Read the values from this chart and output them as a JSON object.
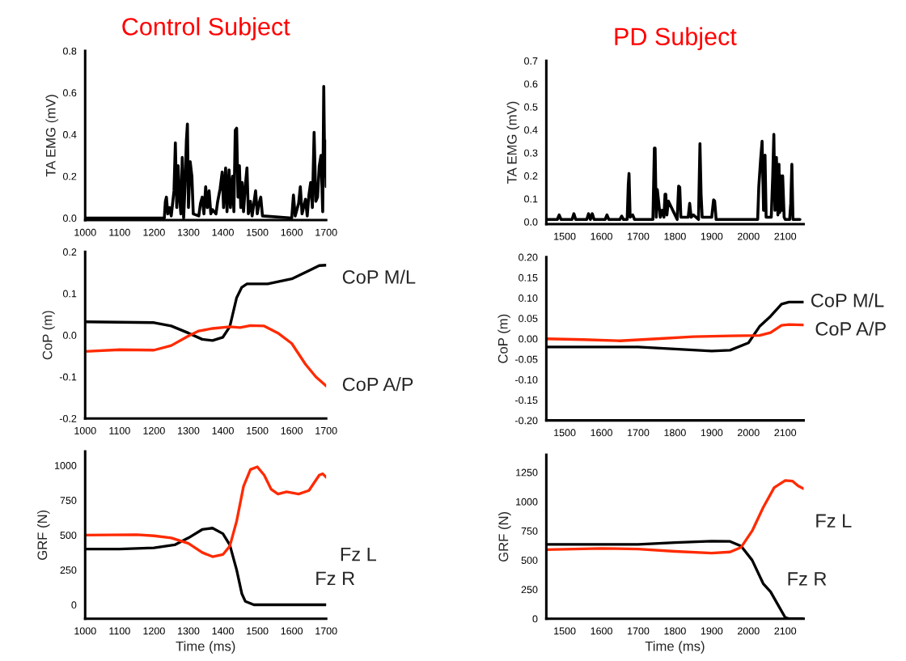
{
  "chart_data": [
    {
      "type": "line",
      "title": "Control Subject",
      "ylabel": "TA EMG (mV)",
      "xlim": [
        1000,
        1700
      ],
      "xticks": [
        1000,
        1100,
        1200,
        1300,
        1400,
        1500,
        1600,
        1700
      ],
      "ylim": [
        -0.01,
        0.8
      ],
      "yticks": [
        {
          "value": 0,
          "label": "0.0"
        },
        {
          "value": 0.2,
          "label": "0.2"
        },
        {
          "value": 0.4,
          "label": "0.4"
        },
        {
          "value": 0.6,
          "label": "0.6"
        },
        {
          "value": 0.8,
          "label": "0.8"
        }
      ],
      "grid": false,
      "legend": false,
      "series": [
        {
          "color": "#000000",
          "x": [
            1000,
            1230,
            1233,
            1236,
            1240,
            1245,
            1250,
            1258,
            1262,
            1266,
            1270,
            1274,
            1278,
            1282,
            1286,
            1290,
            1294,
            1297,
            1300,
            1305,
            1310,
            1314,
            1330,
            1335,
            1340,
            1345,
            1350,
            1355,
            1360,
            1365,
            1370,
            1380,
            1385,
            1392,
            1398,
            1402,
            1408,
            1412,
            1418,
            1422,
            1428,
            1432,
            1436,
            1440,
            1444,
            1448,
            1452,
            1456,
            1460,
            1465,
            1470,
            1474,
            1480,
            1485,
            1495,
            1500,
            1505,
            1510,
            1515,
            1600,
            1605,
            1610,
            1620,
            1625,
            1630,
            1640,
            1645,
            1650,
            1655,
            1660,
            1665,
            1670,
            1675,
            1680,
            1685,
            1690,
            1693,
            1696,
            1698,
            1700
          ],
          "values": [
            0,
            0,
            0.08,
            0.1,
            0.02,
            0.05,
            0.01,
            0.13,
            0.36,
            0.05,
            0.25,
            0.1,
            0.02,
            0.29,
            0,
            0.15,
            0.37,
            0.45,
            0.05,
            0.27,
            0.2,
            0.02,
            0.01,
            0.07,
            0.1,
            0.02,
            0.15,
            0.05,
            0.13,
            0.02,
            0.04,
            0.02,
            0.08,
            0.14,
            0.22,
            0.05,
            0.24,
            0.03,
            0.23,
            0.05,
            0.2,
            0.03,
            0.42,
            0.43,
            0.1,
            0.25,
            0.05,
            0.17,
            0.03,
            0.15,
            0.24,
            0.02,
            0.08,
            0.01,
            0.13,
            0.02,
            0.07,
            0.1,
            0.01,
            0,
            0.11,
            0.01,
            0.07,
            0.15,
            0.02,
            0.09,
            0.01,
            0.11,
            0.17,
            0.05,
            0.41,
            0.08,
            0.1,
            0.25,
            0.3,
            0.03,
            0.63,
            0.2,
            0.37,
            0.15
          ]
        }
      ]
    },
    {
      "type": "line",
      "title": "PD Subject",
      "ylabel": "TA EMG (mV)",
      "xlim": [
        1450,
        2150
      ],
      "xticks": [
        1500,
        1600,
        1700,
        1800,
        1900,
        2000,
        2100
      ],
      "ylim": [
        -0.01,
        0.7
      ],
      "yticks": [
        {
          "value": 0,
          "label": "0.0"
        },
        0.1,
        0.2,
        0.3,
        0.4,
        0.5,
        0.6,
        0.7
      ],
      "grid": false,
      "legend": false,
      "series": [
        {
          "color": "#000000",
          "x": [
            1450,
            1480,
            1485,
            1490,
            1520,
            1525,
            1530,
            1560,
            1565,
            1570,
            1575,
            1580,
            1610,
            1615,
            1620,
            1650,
            1655,
            1660,
            1670,
            1673,
            1675,
            1678,
            1685,
            1690,
            1695,
            1740,
            1744,
            1746,
            1749,
            1752,
            1760,
            1765,
            1770,
            1773,
            1775,
            1778,
            1782,
            1806,
            1810,
            1813,
            1816,
            1836,
            1840,
            1844,
            1850,
            1864,
            1868,
            1871,
            1874,
            1900,
            1905,
            1908,
            1912,
            1990,
            2025,
            2028,
            2033,
            2037,
            2041,
            2045,
            2048,
            2052,
            2062,
            2066,
            2069,
            2072,
            2076,
            2080,
            2083,
            2085,
            2088,
            2091,
            2093,
            2097,
            2100,
            2112,
            2115,
            2118,
            2121,
            2140
          ],
          "values": [
            0.01,
            0.01,
            0.03,
            0.01,
            0.01,
            0.035,
            0.01,
            0.01,
            0.035,
            0.01,
            0.035,
            0.01,
            0.01,
            0.03,
            0.01,
            0.01,
            0.025,
            0.01,
            0.01,
            0.16,
            0.21,
            0.02,
            0.03,
            0.01,
            0.01,
            0.01,
            0.32,
            0.32,
            0.02,
            0.14,
            0.02,
            0.05,
            0.02,
            0.12,
            0.12,
            0.03,
            0.09,
            0.01,
            0.155,
            0.15,
            0.02,
            0.02,
            0.08,
            0.02,
            0.03,
            0.01,
            0.34,
            0.12,
            0.02,
            0.02,
            0.095,
            0.09,
            0.01,
            0.01,
            0.01,
            0.15,
            0.27,
            0.35,
            0.05,
            0.29,
            0.02,
            0.02,
            0.02,
            0.2,
            0.38,
            0.05,
            0.28,
            0.03,
            0.25,
            0.04,
            0.2,
            0.05,
            0.2,
            0.02,
            0.01,
            0.01,
            0.08,
            0.25,
            0.01,
            0.01
          ]
        }
      ]
    },
    {
      "type": "line",
      "ylabel": "CoP (m)",
      "xlim": [
        1000,
        1700
      ],
      "xticks": [
        1000,
        1100,
        1200,
        1300,
        1400,
        1500,
        1600,
        1700
      ],
      "ylim": [
        -0.2,
        0.2
      ],
      "yticks": [
        -0.2,
        -0.1,
        {
          "value": 0,
          "label": "0.0"
        },
        0.1,
        0.2
      ],
      "grid": false,
      "legend": false,
      "series": [
        {
          "name": "CoP M/L",
          "color": "#000000",
          "x": [
            1000,
            1200,
            1250,
            1300,
            1340,
            1370,
            1400,
            1420,
            1440,
            1455,
            1470,
            1530,
            1600,
            1650,
            1680,
            1700
          ],
          "values": [
            0.032,
            0.03,
            0.022,
            0.005,
            -0.01,
            -0.013,
            -0.005,
            0.02,
            0.09,
            0.115,
            0.123,
            0.123,
            0.135,
            0.155,
            0.167,
            0.168
          ]
        },
        {
          "name": "CoP A/P",
          "color": "#ff2a00",
          "x": [
            1000,
            1100,
            1200,
            1250,
            1300,
            1330,
            1370,
            1420,
            1450,
            1480,
            1520,
            1560,
            1600,
            1640,
            1670,
            1700
          ],
          "values": [
            -0.039,
            -0.035,
            -0.036,
            -0.025,
            -0.002,
            0.01,
            0.016,
            0.02,
            0.018,
            0.023,
            0.022,
            0.005,
            -0.02,
            -0.07,
            -0.1,
            -0.122
          ]
        }
      ]
    },
    {
      "type": "line",
      "ylabel": "CoP (m)",
      "xlim": [
        1450,
        2150
      ],
      "xticks": [
        1500,
        1600,
        1700,
        1800,
        1900,
        2000,
        2100
      ],
      "ylim": [
        -0.2,
        0.2
      ],
      "yticks": [
        {
          "value": -0.2,
          "label": "-0.20"
        },
        -0.15,
        {
          "value": -0.1,
          "label": "-0.10"
        },
        -0.05,
        {
          "value": 0,
          "label": "0.00"
        },
        0.05,
        {
          "value": 0.1,
          "label": "0.10"
        },
        0.15,
        {
          "value": 0.2,
          "label": "0.20"
        }
      ],
      "grid": false,
      "legend": false,
      "series": [
        {
          "name": "CoP M/L",
          "color": "#000000",
          "x": [
            1450,
            1600,
            1700,
            1800,
            1900,
            1950,
            2000,
            2030,
            2060,
            2090,
            2110,
            2150
          ],
          "values": [
            -0.02,
            -0.02,
            -0.02,
            -0.025,
            -0.03,
            -0.028,
            -0.01,
            0.03,
            0.055,
            0.085,
            0.09,
            0.09
          ]
        },
        {
          "name": "CoP A/P",
          "color": "#ff2a00",
          "x": [
            1450,
            1550,
            1650,
            1750,
            1850,
            1950,
            2030,
            2060,
            2090,
            2110,
            2150
          ],
          "values": [
            0,
            -0.002,
            -0.005,
            0,
            0.005,
            0.007,
            0.008,
            0.015,
            0.033,
            0.035,
            0.034
          ]
        }
      ]
    },
    {
      "type": "line",
      "xlabel": "Time (ms)",
      "ylabel": "GRF (N)",
      "xlim": [
        1000,
        1700
      ],
      "xticks": [
        1000,
        1100,
        1200,
        1300,
        1400,
        1500,
        1600,
        1700
      ],
      "ylim": [
        -100,
        1100
      ],
      "yticks": [
        0,
        250,
        500,
        750,
        1000
      ],
      "grid": false,
      "legend": false,
      "series": [
        {
          "name": "Fz R",
          "color": "#000000",
          "x": [
            1000,
            1100,
            1200,
            1260,
            1300,
            1340,
            1370,
            1400,
            1420,
            1440,
            1455,
            1465,
            1490,
            1700
          ],
          "values": [
            400,
            400,
            408,
            430,
            480,
            540,
            550,
            510,
            430,
            250,
            80,
            25,
            0,
            0
          ]
        },
        {
          "name": "Fz L",
          "color": "#ff2a00",
          "x": [
            1000,
            1150,
            1200,
            1250,
            1300,
            1340,
            1370,
            1400,
            1420,
            1440,
            1460,
            1480,
            1500,
            1520,
            1540,
            1560,
            1585,
            1620,
            1650,
            1680,
            1690,
            1700
          ],
          "values": [
            500,
            503,
            495,
            480,
            440,
            375,
            345,
            360,
            420,
            600,
            850,
            970,
            990,
            930,
            830,
            795,
            810,
            795,
            820,
            930,
            940,
            915
          ]
        }
      ]
    },
    {
      "type": "line",
      "xlabel": "Time (ms)",
      "ylabel": "GRF (N)",
      "xlim": [
        1450,
        2150
      ],
      "xticks": [
        1500,
        1600,
        1700,
        1800,
        1900,
        2000,
        2100
      ],
      "ylim": [
        0,
        1400
      ],
      "yticks": [
        0,
        250,
        500,
        750,
        1000,
        1250
      ],
      "grid": false,
      "legend": false,
      "series": [
        {
          "name": "Fz R",
          "color": "#000000",
          "x": [
            1450,
            1600,
            1700,
            1800,
            1900,
            1950,
            1980,
            2010,
            2040,
            2060,
            2080,
            2100,
            2110,
            2150
          ],
          "values": [
            635,
            635,
            635,
            650,
            662,
            660,
            620,
            500,
            300,
            230,
            120,
            10,
            0,
            0
          ]
        },
        {
          "name": "Fz L",
          "color": "#ff2a00",
          "x": [
            1450,
            1600,
            1700,
            1800,
            1900,
            1950,
            1980,
            2010,
            2040,
            2070,
            2100,
            2120,
            2135,
            2150
          ],
          "values": [
            590,
            600,
            595,
            575,
            560,
            570,
            610,
            750,
            950,
            1120,
            1180,
            1175,
            1135,
            1110
          ]
        }
      ]
    }
  ]
}
